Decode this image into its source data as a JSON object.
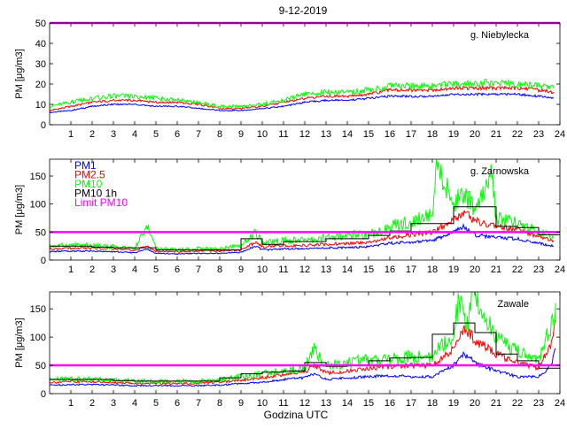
{
  "figure_title": "9-12-2019",
  "colors": {
    "pm1": "#0000ff",
    "pm25": "#ff0000",
    "pm10": "#00ff00",
    "pm10_1h": "#000000",
    "limit": "#ff00ff"
  },
  "chart_data": [
    {
      "type": "line",
      "station": "g. Niebylecka",
      "ylabel": "PM [μg/m3]",
      "xlabel": "",
      "xlim": [
        0,
        24
      ],
      "ylim": [
        0,
        50
      ],
      "yticks": [
        0,
        10,
        20,
        30,
        40,
        50
      ],
      "xticks": [
        1,
        2,
        3,
        4,
        5,
        6,
        7,
        8,
        9,
        10,
        11,
        12,
        13,
        14,
        15,
        16,
        17,
        18,
        19,
        20,
        21,
        22,
        23,
        24
      ],
      "limit_pm10": 50,
      "legend": [],
      "series": [
        {
          "name": "PM1",
          "key": "pm1",
          "x": [
            0,
            1,
            2,
            3,
            4,
            5,
            6,
            7,
            8,
            9,
            10,
            11,
            12,
            13,
            14,
            15,
            16,
            17,
            18,
            19,
            20,
            21,
            22,
            23,
            23.7
          ],
          "values": [
            6,
            7,
            9,
            10,
            10,
            9,
            9,
            8,
            7,
            7,
            8,
            9,
            11,
            12,
            12,
            13,
            14,
            14,
            14,
            15,
            15,
            15,
            15,
            14,
            13
          ]
        },
        {
          "name": "PM2.5",
          "key": "pm25",
          "x": [
            0,
            1,
            2,
            3,
            4,
            5,
            6,
            7,
            8,
            9,
            10,
            11,
            12,
            13,
            14,
            15,
            16,
            17,
            18,
            19,
            20,
            21,
            22,
            23,
            23.7
          ],
          "values": [
            7,
            9,
            11,
            12,
            12,
            11,
            11,
            10,
            8,
            8,
            9,
            11,
            13,
            14,
            14,
            15,
            17,
            17,
            17,
            18,
            18,
            18,
            18,
            17,
            16
          ]
        },
        {
          "name": "PM10",
          "key": "pm10",
          "x": [
            0,
            1,
            2,
            3,
            4,
            5,
            6,
            7,
            8,
            9,
            10,
            11,
            12,
            13,
            14,
            15,
            16,
            17,
            18,
            19,
            20,
            21,
            22,
            23,
            23.7
          ],
          "values": [
            9,
            11,
            13,
            14,
            14,
            13,
            12,
            11,
            9,
            9,
            10,
            12,
            15,
            16,
            16,
            17,
            19,
            19,
            19,
            20,
            20,
            21,
            20,
            19,
            18
          ]
        }
      ]
    },
    {
      "type": "line",
      "station": "g. Zarnowska",
      "ylabel": "PM [μg/m3]",
      "xlabel": "",
      "xlim": [
        0,
        24
      ],
      "ylim": [
        0,
        180
      ],
      "yticks": [
        0,
        50,
        100,
        150
      ],
      "xticks": [
        1,
        2,
        3,
        4,
        5,
        6,
        7,
        8,
        9,
        10,
        11,
        12,
        13,
        14,
        15,
        16,
        17,
        18,
        19,
        20,
        21,
        22,
        23,
        24
      ],
      "limit_pm10": 50,
      "legend": [
        "PM1",
        "PM2.5",
        "PM10",
        "PM10 1h",
        "Limit PM10"
      ],
      "series": [
        {
          "name": "PM1",
          "key": "pm1",
          "x": [
            0,
            1,
            2,
            3,
            4,
            4.6,
            5,
            6,
            7,
            8,
            9,
            9.7,
            10,
            11,
            12,
            13,
            14,
            15,
            16,
            17,
            18,
            19,
            19.5,
            20,
            21,
            22,
            23,
            23.7
          ],
          "values": [
            15,
            16,
            16,
            15,
            13,
            20,
            12,
            11,
            12,
            12,
            14,
            25,
            18,
            20,
            20,
            22,
            22,
            24,
            30,
            32,
            35,
            50,
            60,
            45,
            40,
            38,
            30,
            25
          ]
        },
        {
          "name": "PM2.5",
          "key": "pm25",
          "x": [
            0,
            1,
            2,
            3,
            4,
            4.6,
            5,
            6,
            7,
            8,
            9,
            9.7,
            10,
            11,
            12,
            13,
            14,
            15,
            16,
            17,
            18,
            19,
            19.5,
            20,
            21,
            22,
            23,
            23.7
          ],
          "values": [
            20,
            21,
            21,
            20,
            17,
            25,
            16,
            15,
            16,
            16,
            18,
            32,
            24,
            26,
            26,
            28,
            30,
            32,
            40,
            45,
            50,
            70,
            85,
            70,
            60,
            55,
            40,
            35
          ]
        },
        {
          "name": "PM10",
          "key": "pm10",
          "x": [
            0,
            1,
            2,
            3,
            4,
            4.6,
            5,
            6,
            7,
            8,
            9,
            9.7,
            10,
            11,
            12,
            13,
            14,
            15,
            16,
            17,
            18,
            18.2,
            19,
            19.5,
            20,
            20.8,
            21,
            22,
            23,
            23.7
          ],
          "values": [
            25,
            26,
            26,
            24,
            20,
            60,
            20,
            19,
            20,
            20,
            25,
            50,
            30,
            35,
            35,
            40,
            45,
            45,
            60,
            70,
            80,
            180,
            100,
            120,
            90,
            150,
            75,
            65,
            50,
            40
          ]
        },
        {
          "name": "PM10 1h",
          "key": "pm10_1h",
          "step": true,
          "x": [
            0,
            1,
            2,
            3,
            4,
            5,
            6,
            7,
            8,
            9,
            10,
            11,
            12,
            13,
            14,
            15,
            16,
            17,
            18,
            19,
            20,
            21,
            22,
            23,
            24
          ],
          "values": [
            25,
            25,
            23,
            22,
            22,
            18,
            18,
            18,
            18,
            38,
            28,
            33,
            33,
            38,
            38,
            44,
            52,
            65,
            65,
            95,
            95,
            60,
            58,
            45,
            45
          ]
        }
      ]
    },
    {
      "type": "line",
      "station": "Zawale",
      "ylabel": "PM [μg/m3]",
      "xlabel": "Godzina UTC",
      "xlim": [
        0,
        24
      ],
      "ylim": [
        0,
        180
      ],
      "yticks": [
        0,
        50,
        100,
        150
      ],
      "xticks": [
        1,
        2,
        3,
        4,
        5,
        6,
        7,
        8,
        9,
        10,
        11,
        12,
        13,
        14,
        15,
        16,
        17,
        18,
        19,
        20,
        21,
        22,
        23,
        24
      ],
      "limit_pm10": 50,
      "legend": [],
      "series": [
        {
          "name": "PM1",
          "key": "pm1",
          "x": [
            0,
            1,
            2,
            3,
            4,
            5,
            6,
            7,
            8,
            9,
            10,
            11,
            12,
            12.4,
            13,
            14,
            15,
            16,
            17,
            18,
            19,
            19.5,
            20,
            21,
            22,
            23,
            23.6,
            23.8
          ],
          "values": [
            15,
            16,
            16,
            15,
            14,
            14,
            14,
            14,
            15,
            18,
            20,
            25,
            28,
            35,
            25,
            28,
            30,
            32,
            30,
            30,
            50,
            70,
            55,
            40,
            30,
            30,
            50,
            80
          ]
        },
        {
          "name": "PM2.5",
          "key": "pm25",
          "x": [
            0,
            1,
            2,
            3,
            4,
            5,
            6,
            7,
            8,
            9,
            10,
            11,
            12,
            12.4,
            13,
            14,
            15,
            16,
            17,
            18,
            19,
            19.5,
            20,
            21,
            22,
            23,
            23.6,
            23.8
          ],
          "values": [
            20,
            21,
            21,
            20,
            18,
            18,
            18,
            18,
            20,
            24,
            28,
            33,
            38,
            50,
            36,
            40,
            45,
            48,
            50,
            50,
            80,
            120,
            95,
            70,
            55,
            45,
            90,
            130
          ]
        },
        {
          "name": "PM10",
          "key": "pm10",
          "x": [
            0,
            1,
            2,
            3,
            4,
            5,
            6,
            7,
            8,
            9,
            10,
            11,
            12,
            12.4,
            13,
            14,
            15,
            16,
            17,
            18,
            19,
            19.3,
            19.6,
            20,
            20.3,
            21,
            22,
            23,
            23.6,
            23.8
          ],
          "values": [
            25,
            26,
            26,
            24,
            22,
            22,
            22,
            22,
            24,
            30,
            35,
            40,
            45,
            80,
            48,
            55,
            60,
            60,
            65,
            65,
            110,
            170,
            125,
            180,
            150,
            100,
            75,
            60,
            120,
            160
          ]
        },
        {
          "name": "PM10 1h",
          "key": "pm10_1h",
          "step": true,
          "x": [
            0,
            1,
            2,
            3,
            4,
            5,
            6,
            7,
            8,
            9,
            10,
            11,
            12,
            13,
            14,
            15,
            16,
            17,
            18,
            19,
            20,
            21,
            22,
            23,
            24
          ],
          "values": [
            25,
            25,
            25,
            23,
            22,
            22,
            22,
            22,
            28,
            35,
            38,
            40,
            55,
            48,
            50,
            58,
            63,
            64,
            105,
            125,
            108,
            70,
            58,
            45,
            45
          ]
        }
      ]
    }
  ]
}
